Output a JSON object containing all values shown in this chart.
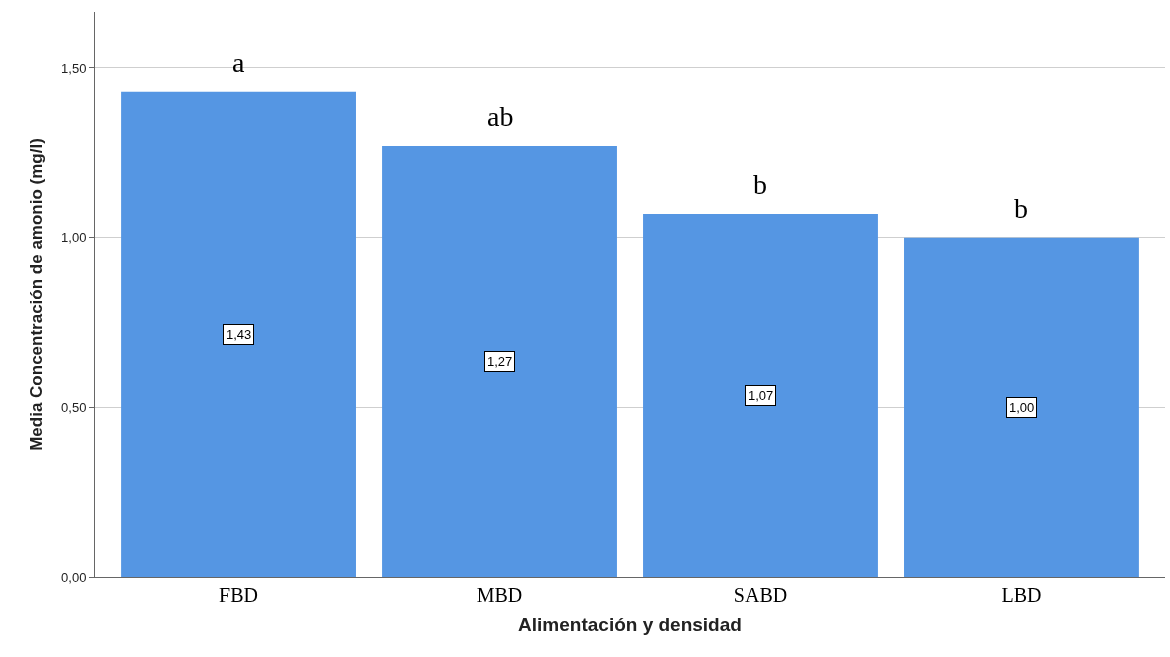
{
  "chart_data": {
    "type": "bar",
    "xlabel": "Alimentación y densidad",
    "ylabel": "Media Concentración de amonio (mg/l)",
    "categories": [
      "FBD",
      "MBD",
      "SABD",
      "LBD"
    ],
    "values": [
      1.43,
      1.27,
      1.07,
      1.0
    ],
    "value_labels": [
      "1,43",
      "1,27",
      "1,07",
      "1,00"
    ],
    "color": "#5596e3",
    "ylim": [
      0,
      1.665
    ],
    "yticks": [
      {
        "value": 0,
        "label": "0,00"
      },
      {
        "value": 0.5,
        "label": "0,50"
      },
      {
        "value": 1,
        "label": "1,00"
      },
      {
        "value": 1.5,
        "label": "1,50"
      }
    ],
    "grid": "y",
    "annotations": [
      "a",
      "ab",
      "b",
      "b"
    ]
  }
}
